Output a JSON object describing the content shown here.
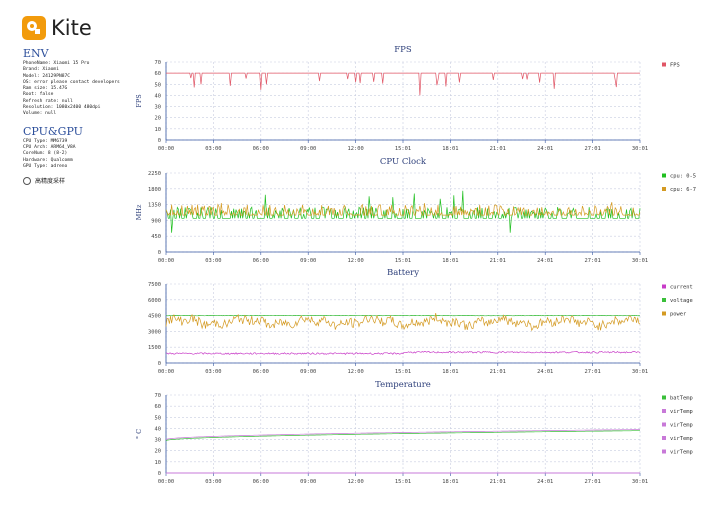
{
  "app": {
    "name": "Kite"
  },
  "env": {
    "title": "ENV",
    "lines": [
      "PhoneName: Xiaomi 15 Pro",
      "Brand: Xiaomi",
      "Model: 24129PN87C",
      "OS: error please contact developers",
      "Ram size: 15.47G",
      "Root: false",
      "Refresh rate: null",
      "Resolution: 1080x2400 480dpi",
      "Volume: null"
    ]
  },
  "cpu": {
    "title": "CPU&GPU",
    "lines": [
      "CPU Type: MM6739",
      "CPU Arch: ARM64_V8A",
      "CoreNum: 8 (8-2)",
      "Hardware: Qualcomm",
      "GPU Type: adreno"
    ]
  },
  "options": {
    "high_precision_label": "高精度采样"
  },
  "x_ticks": [
    "00:00",
    "03:00",
    "06:00",
    "09:00",
    "12:00",
    "15:01",
    "18:01",
    "21:01",
    "24:01",
    "27:01",
    "30:01"
  ],
  "colors": {
    "fps": "#e05565",
    "cpu0": "#1fbf1f",
    "cpu6": "#d49a22",
    "current": "#c83cc8",
    "voltage": "#3abf3a",
    "power": "#d49a22",
    "batTemp": "#3abf3a",
    "virTemp": "#c879d8",
    "grid": "#c8cde0",
    "axis": "#3456a0"
  },
  "chart_data": [
    {
      "type": "line",
      "title": "FPS",
      "ylabel": "FPS",
      "ylim": [
        0,
        70
      ],
      "yticks": [
        0,
        10,
        20,
        30,
        40,
        50,
        60,
        70
      ],
      "series": [
        {
          "name": "FPS",
          "baseline": 60,
          "range": [
            45,
            62
          ],
          "min": 40
        }
      ]
    },
    {
      "type": "line",
      "title": "CPU Clock",
      "ylabel": "MHz",
      "ylim": [
        0,
        2250
      ],
      "yticks": [
        0,
        450,
        900,
        1350,
        1800,
        2250
      ],
      "yticklabels": [
        "0",
        "450",
        "900",
        "1350",
        "1800",
        "2250"
      ],
      "series": [
        {
          "name": "cpu: 0-5",
          "baseline": 960,
          "range": [
            550,
            1750
          ]
        },
        {
          "name": "cpu: 6-7",
          "baseline": 1050,
          "range": [
            950,
            1500
          ]
        }
      ]
    },
    {
      "type": "line",
      "title": "Battery",
      "ylim": [
        0,
        7500
      ],
      "yticks": [
        0,
        1500,
        3000,
        4500,
        6000,
        7500
      ],
      "series": [
        {
          "name": "current",
          "baseline": 900,
          "range": [
            750,
            1100
          ]
        },
        {
          "name": "voltage",
          "baseline": 4500,
          "range": [
            4450,
            4550
          ]
        },
        {
          "name": "power",
          "baseline": 3900,
          "range": [
            3200,
            5200
          ]
        }
      ]
    },
    {
      "type": "line",
      "title": "Temperature",
      "ylabel": "° C",
      "ylim": [
        0,
        70
      ],
      "yticks": [
        0,
        10,
        20,
        30,
        40,
        50,
        60,
        70
      ],
      "series": [
        {
          "name": "batTemp",
          "start": 29,
          "end": 38
        },
        {
          "name": "virTemp",
          "start": 30,
          "end": 39
        },
        {
          "name": "virTemp",
          "start": 0,
          "end": 0
        },
        {
          "name": "virTemp",
          "start": 0,
          "end": 0
        },
        {
          "name": "virTemp",
          "start": 0,
          "end": 0
        }
      ]
    }
  ]
}
